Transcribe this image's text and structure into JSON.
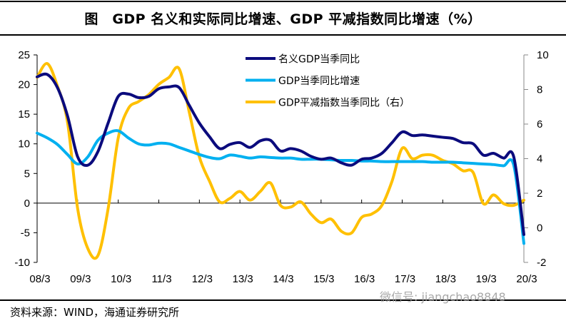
{
  "title": "图　GDP 名义和实际同比增速、GDP 平减指数同比增速（%）",
  "source": "资料来源：WIND，海通证券研究所",
  "watermark": "微信号: jiangchao8848",
  "chart_data": {
    "type": "line",
    "title": "图　GDP 名义和实际同比增速、GDP 平减指数同比增速（%）",
    "x_tick_labels": [
      "08/3",
      "09/3",
      "10/3",
      "11/3",
      "12/3",
      "13/3",
      "14/3",
      "15/3",
      "16/3",
      "17/3",
      "18/3",
      "19/3",
      "20/3"
    ],
    "x_frequency": "quarterly, 2008Q1–2020Q1",
    "y_left": {
      "ticks": [
        25,
        20,
        15,
        10,
        5,
        0,
        -5,
        -10
      ],
      "lim": [
        -10,
        25
      ]
    },
    "y_right": {
      "ticks": [
        10,
        8,
        6,
        4,
        2,
        0,
        -2
      ],
      "lim": [
        -2,
        10
      ]
    },
    "grid": false,
    "legend_position": "top-center",
    "series": [
      {
        "name": "名义GDP当季同比",
        "axis": "left",
        "color": "#0b0b7d",
        "values": [
          21.3,
          21.7,
          19.5,
          14.7,
          7.8,
          6.4,
          8.7,
          13.5,
          18.0,
          18.4,
          17.8,
          18.0,
          19.3,
          19.6,
          19.5,
          16.5,
          13.5,
          11.2,
          9.2,
          9.9,
          10.2,
          9.4,
          10.5,
          10.6,
          8.8,
          9.2,
          8.8,
          7.9,
          7.4,
          7.6,
          6.8,
          6.4,
          7.4,
          7.6,
          8.4,
          10.2,
          12.0,
          11.4,
          11.5,
          11.3,
          11.1,
          10.9,
          10.2,
          10.0,
          8.1,
          8.4,
          7.6,
          7.8,
          -5.3
        ]
      },
      {
        "name": "GDP当季同比增速",
        "axis": "left",
        "color": "#00b0f0",
        "values": [
          11.8,
          11.0,
          9.9,
          8.2,
          6.6,
          7.8,
          10.6,
          11.8,
          12.2,
          11.0,
          10.0,
          9.8,
          10.1,
          10.0,
          9.4,
          8.8,
          8.2,
          7.7,
          7.5,
          8.1,
          7.9,
          7.6,
          7.8,
          7.7,
          7.6,
          7.6,
          7.4,
          7.4,
          7.4,
          7.3,
          7.2,
          7.2,
          7.1,
          7.1,
          7.0,
          7.0,
          7.0,
          7.0,
          7.0,
          6.9,
          6.9,
          6.9,
          6.8,
          6.7,
          6.6,
          6.5,
          6.3,
          6.4,
          -6.8
        ]
      },
      {
        "name": "GDP平减指数当季同比（右）",
        "axis": "right",
        "color": "#ffc000",
        "values": [
          8.7,
          9.5,
          8.2,
          6.1,
          1.1,
          -1.2,
          -1.6,
          1.1,
          5.2,
          6.9,
          7.3,
          7.7,
          8.3,
          8.7,
          9.2,
          6.7,
          4.1,
          2.7,
          1.5,
          1.7,
          2.1,
          1.6,
          2.1,
          2.6,
          1.3,
          1.2,
          1.5,
          0.8,
          0.3,
          0.5,
          -0.2,
          -0.3,
          0.6,
          0.8,
          1.3,
          2.7,
          4.6,
          4.0,
          4.2,
          4.2,
          3.9,
          3.7,
          3.3,
          3.2,
          1.4,
          1.9,
          1.4,
          1.3,
          1.6
        ]
      }
    ]
  }
}
